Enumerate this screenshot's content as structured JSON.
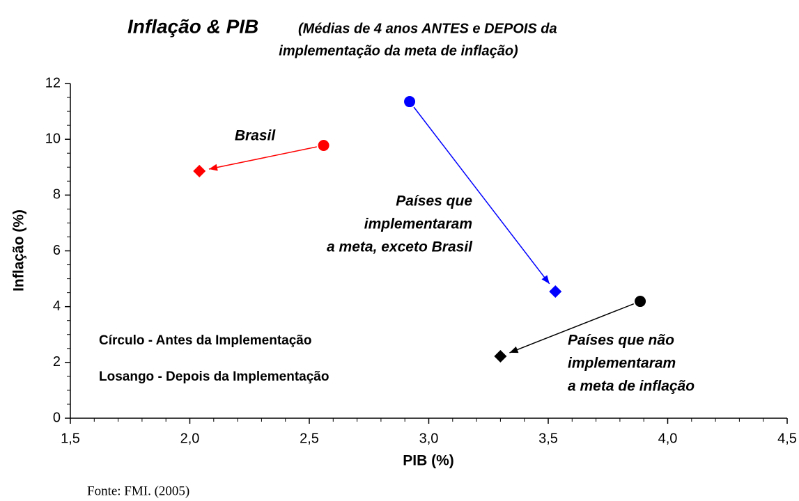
{
  "chart_data": {
    "type": "scatter",
    "title": "Inflação & PIB",
    "subtitle": [
      "(Médias de 4 anos ANTES e DEPOIS da",
      "implementação da meta de inflação)"
    ],
    "xlabel": "PIB (%)",
    "ylabel": "Inflação (%)",
    "xlim": [
      1.5,
      4.5
    ],
    "xticks": [
      {
        "value": 1.5,
        "label": "1,5"
      },
      {
        "value": 2.0,
        "label": "2,0"
      },
      {
        "value": 2.5,
        "label": "2,5"
      },
      {
        "value": 3.0,
        "label": "3,0"
      },
      {
        "value": 3.5,
        "label": "3,5"
      },
      {
        "value": 4.0,
        "label": "4,0"
      },
      {
        "value": 4.5,
        "label": "4,5"
      }
    ],
    "ylim": [
      0,
      12
    ],
    "yticks": [
      0,
      2,
      4,
      6,
      8,
      10,
      12
    ],
    "series": [
      {
        "label": [
          "Brasil"
        ],
        "color": "#ff0000",
        "x": [
          2.56,
          2.04
        ],
        "values": [
          9.78,
          8.86
        ]
      },
      {
        "label": [
          "Países que",
          "implementaram",
          "a meta, exceto Brasil"
        ],
        "color": "#0000ff",
        "x": [
          2.92,
          3.53
        ],
        "values": [
          11.35,
          4.54
        ]
      },
      {
        "label": [
          "Países que não",
          "implementaram",
          "a meta de inflação"
        ],
        "color": "#000000",
        "x": [
          3.885,
          3.3
        ],
        "values": [
          4.19,
          2.22
        ]
      }
    ],
    "annotations": [
      "Círculo - Antes da Implementação",
      "Losango - Depois da Implementação"
    ],
    "source": "Fonte: FMI.  (2005)"
  }
}
